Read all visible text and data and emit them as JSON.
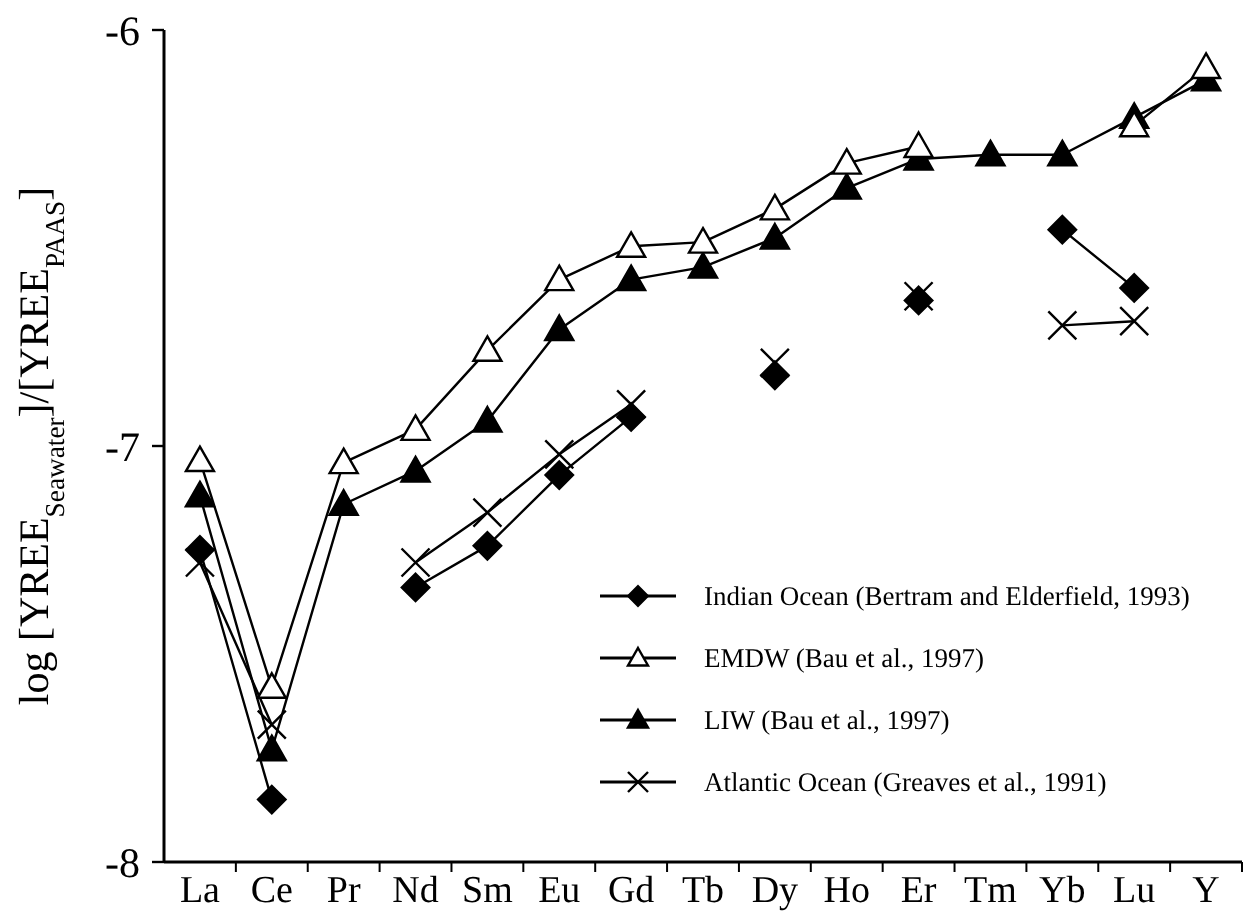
{
  "chart_data": {
    "type": "line",
    "ylabel": "log [YREE$_{Seawater}$]/[YREE$_{PAAS}$]",
    "categories": [
      "La",
      "Ce",
      "Pr",
      "Nd",
      "Sm",
      "Eu",
      "Gd",
      "Tb",
      "Dy",
      "Ho",
      "Er",
      "Tm",
      "Yb",
      "Lu",
      "Y"
    ],
    "ylim": [
      -8,
      -6
    ],
    "yticks": [
      -8,
      -7,
      -6
    ],
    "legend": "bottom right",
    "grid": false,
    "line_style": "solid",
    "series": [
      {
        "name": "Indian Ocean (Bertram and Elderfield, 1993)",
        "color": "#000000",
        "marker": "diamond",
        "values": [
          -7.25,
          -7.85,
          null,
          -7.34,
          -7.24,
          -7.07,
          -6.93,
          null,
          -6.83,
          null,
          -6.65,
          null,
          -6.48,
          -6.62,
          null
        ]
      },
      {
        "name": "EMDW (Bau et al., 1997)",
        "color": "#000000",
        "marker": "triangle",
        "values": [
          -7.035,
          -7.58,
          -7.04,
          -6.96,
          -6.77,
          -6.6,
          -6.52,
          -6.51,
          -6.43,
          -6.32,
          -6.28,
          null,
          null,
          -6.23,
          -6.09
        ]
      },
      {
        "name": "LIW (Bau et al., 1997)",
        "color": "#000000",
        "marker": "triangle",
        "values": [
          -7.12,
          -7.73,
          -7.14,
          -7.06,
          -6.94,
          -6.72,
          -6.6,
          -6.57,
          -6.5,
          -6.38,
          -6.31,
          -6.3,
          -6.3,
          -6.21,
          -6.12
        ]
      },
      {
        "name": "Atlantic Ocean (Greaves et al., 1991)",
        "color": "#000000",
        "marker": "cross",
        "values": [
          -7.28,
          -7.67,
          null,
          -7.28,
          -7.16,
          -7.02,
          -6.9,
          null,
          -6.8,
          null,
          -6.64,
          null,
          -6.71,
          -6.7,
          null
        ]
      }
    ]
  }
}
